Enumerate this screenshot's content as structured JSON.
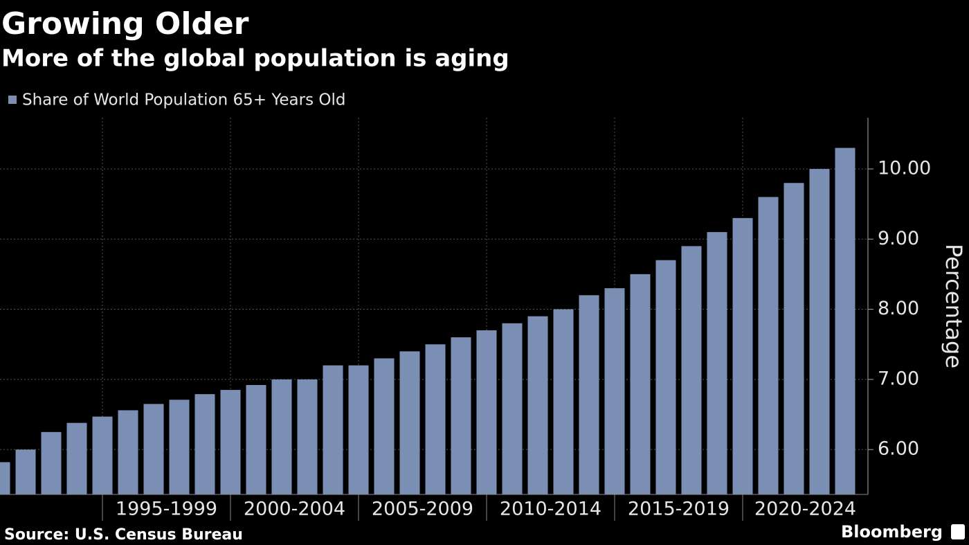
{
  "chart_data": {
    "type": "bar",
    "title": "Growing Older",
    "subtitle": "More of the global population is aging",
    "source": "Source: U.S. Census Bureau",
    "brand": "Bloomberg",
    "y_label": "Percentage",
    "series": [
      {
        "name": "Share of World Population 65+ Years Old",
        "color": "#7a8fb3",
        "values": [
          5.82,
          6.0,
          6.25,
          6.38,
          6.47,
          6.56,
          6.65,
          6.71,
          6.79,
          6.85,
          6.92,
          7.0,
          7.0,
          7.2,
          7.2,
          7.3,
          7.4,
          7.5,
          7.6,
          7.7,
          7.8,
          7.9,
          8.0,
          8.2,
          8.3,
          8.5,
          8.7,
          8.9,
          9.1,
          9.3,
          9.6,
          9.8,
          10.0,
          10.3
        ]
      }
    ],
    "categories": [
      null,
      null,
      null,
      null,
      null,
      null,
      null,
      null,
      null,
      null,
      null,
      null,
      null,
      null,
      null,
      null,
      null,
      null,
      null,
      null,
      null,
      null,
      null,
      null,
      null,
      null,
      null,
      null,
      null,
      null,
      null,
      null,
      null,
      null
    ],
    "x_groups": [
      "1995-1999",
      "2000-2004",
      "2005-2009",
      "2010-2014",
      "2015-2019",
      "2020-2024"
    ],
    "ylim": [
      5.36,
      10.73
    ],
    "yticks": [
      {
        "value": 6,
        "label": "6.00"
      },
      {
        "value": 7,
        "label": "7.00"
      },
      {
        "value": 8,
        "label": "8.00"
      },
      {
        "value": 9,
        "label": "9.00"
      },
      {
        "value": 10,
        "label": "10.00"
      }
    ],
    "grid": true
  }
}
